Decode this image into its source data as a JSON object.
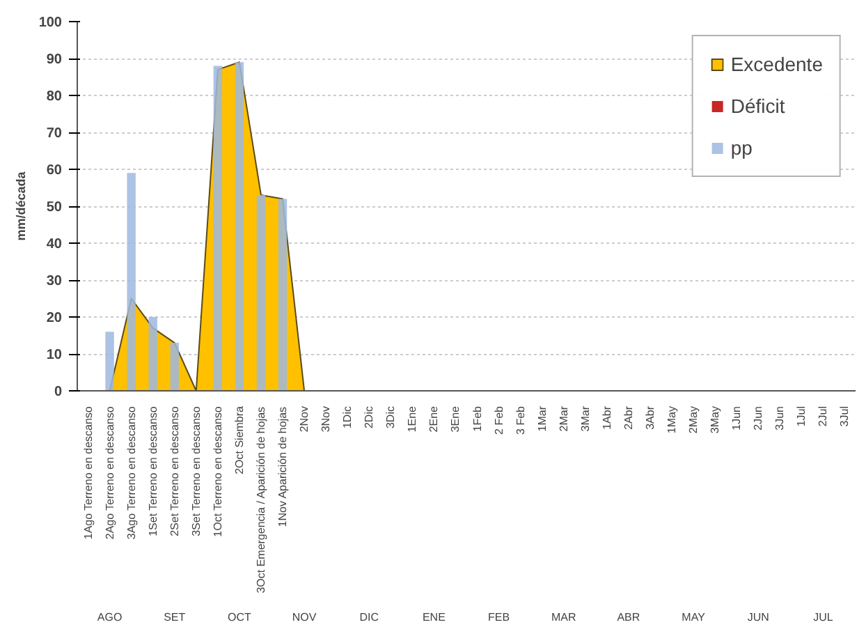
{
  "chart_data": {
    "type": "bar",
    "ylabel": "mm/década",
    "categories": [
      "1Ago Terreno en descanso",
      "2Ago Terreno en descanso",
      "3Ago Terreno en descanso",
      "1Set Terreno en descanso",
      "2Set Terreno en descanso",
      "3Set Terreno en descanso",
      "1Oct Terreno en descanso",
      "2Oct Siembra",
      "3Oct Emergencia / Aparición de hojas",
      "1Nov Aparición de hojas",
      "2Nov",
      "3Nov",
      "1Dic",
      "2Dic",
      "3Dic",
      "1Ene",
      "2Ene",
      "3Ene",
      "1Feb",
      "2 Feb",
      "3 Feb",
      "1Mar",
      "2Mar",
      "3Mar",
      "1Abr",
      "2Abr",
      "3Abr",
      "1May",
      "2May",
      "3May",
      "1Jun",
      "2Jun",
      "3Jun",
      "1Jul",
      "2Jul",
      "3Jul"
    ],
    "annotations": [
      "AGO",
      "SET",
      "OCT",
      "NOV",
      "DIC",
      "ENE",
      "FEB",
      "MAR",
      "ABR",
      "MAY",
      "JUN",
      "JUL"
    ],
    "series": [
      {
        "name": "Excedente",
        "type": "area",
        "color": "#ffc000",
        "values": [
          null,
          0,
          25,
          17,
          13,
          0,
          87,
          89,
          53,
          52,
          0,
          null,
          null,
          null,
          null,
          null,
          null,
          null,
          null,
          null,
          null,
          null,
          null,
          null,
          null,
          null,
          null,
          null,
          null,
          null,
          null,
          null,
          null,
          null,
          null,
          null
        ]
      },
      {
        "name": "Déficit",
        "color": "#c00000",
        "values": [
          0,
          0,
          0,
          0,
          0,
          0,
          0,
          0,
          0,
          0,
          0,
          0,
          0,
          0,
          0,
          0,
          0,
          0,
          0,
          0,
          0,
          0,
          0,
          0,
          0,
          0,
          0,
          0,
          0,
          0,
          0,
          0,
          0,
          0,
          0,
          0
        ]
      },
      {
        "name": "pp",
        "color": "#9db8e0",
        "values": [
          null,
          16,
          59,
          20,
          13,
          null,
          88,
          89,
          53,
          52,
          null,
          null,
          null,
          null,
          null,
          null,
          null,
          null,
          null,
          null,
          null,
          null,
          null,
          null,
          null,
          null,
          null,
          null,
          null,
          null,
          null,
          null,
          null,
          null,
          null,
          null
        ]
      }
    ],
    "ylim": [
      0,
      100
    ],
    "yticks": [
      0,
      10,
      20,
      30,
      40,
      50,
      60,
      70,
      80,
      90,
      100
    ],
    "grid": "y",
    "legend": "top right"
  }
}
